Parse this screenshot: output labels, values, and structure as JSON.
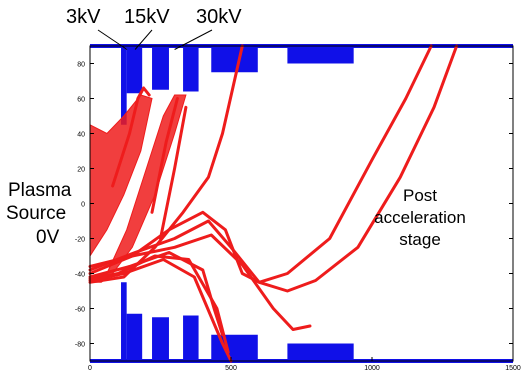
{
  "labels": {
    "electrode_1": "3kV",
    "electrode_2": "15kV",
    "electrode_3": "30kV",
    "source_line1": "Plasma",
    "source_line2": "Source",
    "source_line3": "0V",
    "stage_line1": "Post",
    "stage_line2": "acceleration",
    "stage_line3": "stage"
  },
  "chart_data": {
    "type": "simulation-plot",
    "x_ticks": [
      0,
      500,
      1000,
      1500
    ],
    "y_ticks": [
      80,
      60,
      40,
      20,
      0,
      -20,
      -40,
      -60,
      -80
    ],
    "xlim": [
      0,
      1500
    ],
    "ylim": [
      -90,
      90
    ],
    "colors": {
      "electrodes": "#1010e8",
      "trajectories": "#ee1c1c",
      "axes": "#000000"
    },
    "electrodes": [
      {
        "x": [
          110,
          130
        ],
        "y": [
          45,
          90
        ]
      },
      {
        "x": [
          110,
          130
        ],
        "y": [
          -90,
          -45
        ]
      },
      {
        "x": [
          130,
          185
        ],
        "y": [
          63,
          90
        ]
      },
      {
        "x": [
          130,
          185
        ],
        "y": [
          -90,
          -63
        ]
      },
      {
        "x": [
          220,
          280
        ],
        "y": [
          65,
          90
        ]
      },
      {
        "x": [
          220,
          280
        ],
        "y": [
          -90,
          -65
        ]
      },
      {
        "x": [
          330,
          385
        ],
        "y": [
          64,
          90
        ]
      },
      {
        "x": [
          330,
          385
        ],
        "y": [
          -90,
          -64
        ]
      },
      {
        "x": [
          430,
          595
        ],
        "y": [
          75,
          90
        ]
      },
      {
        "x": [
          430,
          595
        ],
        "y": [
          -90,
          -75
        ]
      },
      {
        "x": [
          700,
          935
        ],
        "y": [
          80,
          90
        ]
      },
      {
        "x": [
          700,
          935
        ],
        "y": [
          -90,
          -80
        ]
      }
    ],
    "trajectories": [
      {
        "points": [
          [
            0,
            -45
          ],
          [
            120,
            -42
          ],
          [
            230,
            -25
          ],
          [
            330,
            -5
          ],
          [
            420,
            15
          ],
          [
            470,
            40
          ],
          [
            540,
            90
          ]
        ]
      },
      {
        "points": [
          [
            0,
            -43
          ],
          [
            100,
            -40
          ],
          [
            230,
            -30
          ],
          [
            350,
            -32
          ],
          [
            450,
            -60
          ],
          [
            490,
            -85
          ]
        ]
      },
      {
        "points": [
          [
            0,
            -44
          ],
          [
            120,
            -40
          ],
          [
            260,
            -32
          ],
          [
            370,
            -42
          ],
          [
            470,
            -80
          ],
          [
            500,
            -90
          ]
        ]
      },
      {
        "points": [
          [
            0,
            -42
          ],
          [
            140,
            -36
          ],
          [
            280,
            -28
          ],
          [
            400,
            -38
          ],
          [
            440,
            -60
          ],
          [
            470,
            -75
          ]
        ]
      },
      {
        "points": [
          [
            0,
            -40
          ],
          [
            150,
            -30
          ],
          [
            280,
            -15
          ],
          [
            400,
            -5
          ],
          [
            480,
            -15
          ],
          [
            540,
            -40
          ],
          [
            600,
            -45
          ],
          [
            700,
            -40
          ],
          [
            850,
            -20
          ],
          [
            1000,
            25
          ],
          [
            1120,
            60
          ],
          [
            1210,
            90
          ]
        ]
      },
      {
        "points": [
          [
            0,
            -38
          ],
          [
            160,
            -28
          ],
          [
            300,
            -20
          ],
          [
            420,
            -10
          ],
          [
            500,
            -25
          ],
          [
            600,
            -45
          ],
          [
            700,
            -50
          ],
          [
            800,
            -44
          ],
          [
            950,
            -25
          ],
          [
            1100,
            15
          ],
          [
            1220,
            55
          ],
          [
            1300,
            90
          ]
        ]
      },
      {
        "points": [
          [
            0,
            -36
          ],
          [
            150,
            -30
          ],
          [
            300,
            -25
          ],
          [
            430,
            -18
          ],
          [
            540,
            -35
          ],
          [
            650,
            -60
          ],
          [
            720,
            -72
          ],
          [
            780,
            -70
          ]
        ]
      },
      {
        "points": [
          [
            80,
            10
          ],
          [
            140,
            40
          ],
          [
            170,
            60
          ],
          [
            190,
            66
          ],
          [
            210,
            62
          ]
        ]
      },
      {
        "points": [
          [
            220,
            -5
          ],
          [
            270,
            35
          ],
          [
            310,
            60
          ]
        ]
      },
      {
        "points": [
          [
            250,
            -20
          ],
          [
            300,
            20
          ],
          [
            340,
            55
          ]
        ]
      }
    ]
  }
}
